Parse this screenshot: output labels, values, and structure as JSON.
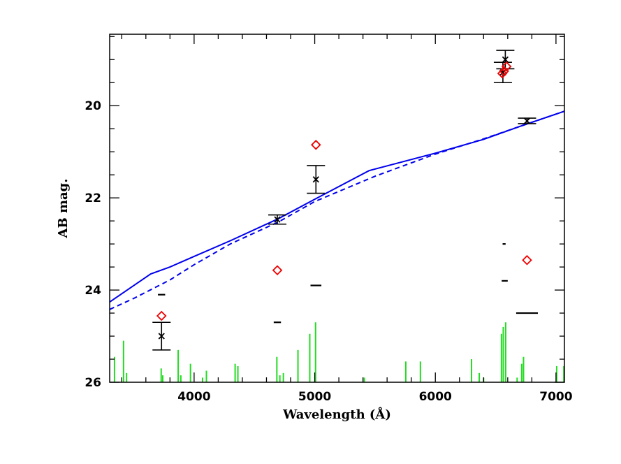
{
  "chart_data": {
    "type": "scatter",
    "title": "",
    "xlabel": "Wavelength (Å)",
    "ylabel": "AB mag.",
    "xlim": [
      3300,
      7070
    ],
    "ylim": [
      26,
      18.45
    ],
    "y_inverted": true,
    "x_ticks": [
      4000,
      5000,
      6000,
      7000
    ],
    "y_ticks": [
      20,
      22,
      24,
      26
    ],
    "grid": false,
    "legend": "none",
    "colors": {
      "model_solid": "#0000ee",
      "model_dashed": "#0000ee",
      "observed": "#000000",
      "synthetic": "#ee0000",
      "emission_lines": "#22dd22",
      "ticks_short": "#000000"
    },
    "series": [
      {
        "style": "solid-line",
        "x": [
          3300,
          3640,
          3800,
          4000,
          4300,
          4700,
          5000,
          5450,
          6000,
          6400,
          6700,
          7070
        ],
        "y": [
          24.26,
          23.65,
          23.5,
          23.27,
          22.93,
          22.45,
          22.03,
          21.41,
          21.03,
          20.73,
          20.45,
          20.12
        ]
      },
      {
        "style": "dashed-line",
        "x": [
          3300,
          3500,
          3800,
          4000,
          4300,
          4700,
          5000,
          5500,
          6000,
          6400,
          6700,
          7070
        ],
        "y": [
          24.42,
          24.18,
          23.78,
          23.45,
          23.0,
          22.52,
          22.08,
          21.53,
          21.05,
          20.72,
          20.45,
          20.12
        ]
      },
      {
        "style": "cross-with-errorbar",
        "points": [
          {
            "x": 3730,
            "y": 25.0,
            "err": 0.3
          },
          {
            "x": 4690,
            "y": 22.47,
            "err": 0.1
          },
          {
            "x": 5010,
            "y": 21.6,
            "err": 0.3
          },
          {
            "x": 6560,
            "y": 19.28,
            "err": 0.22
          },
          {
            "x": 6580,
            "y": 19.0,
            "err": 0.2
          },
          {
            "x": 6760,
            "y": 20.33,
            "err": 0.06
          }
        ]
      },
      {
        "style": "open-diamond",
        "points": [
          {
            "x": 3730,
            "y": 24.56
          },
          {
            "x": 4690,
            "y": 23.57
          },
          {
            "x": 5010,
            "y": 20.85
          },
          {
            "x": 6555,
            "y": 19.3
          },
          {
            "x": 6570,
            "y": 19.25
          },
          {
            "x": 6590,
            "y": 19.15
          },
          {
            "x": 6760,
            "y": 23.35
          }
        ]
      },
      {
        "style": "short-horizontal-dash",
        "points": [
          {
            "x": 3730,
            "y": 24.1,
            "w": 60
          },
          {
            "x": 4690,
            "y": 24.7,
            "w": 60
          },
          {
            "x": 5010,
            "y": 23.9,
            "w": 90
          },
          {
            "x": 6570,
            "y": 23.0,
            "w": 25
          },
          {
            "x": 6575,
            "y": 23.8,
            "w": 50
          },
          {
            "x": 6760,
            "y": 24.5,
            "w": 180
          }
        ]
      }
    ],
    "emission_lines": [
      {
        "x": 3340,
        "top": 25.45
      },
      {
        "x": 3415,
        "top": 25.1
      },
      {
        "x": 3440,
        "top": 25.8
      },
      {
        "x": 3727,
        "top": 25.7
      },
      {
        "x": 3740,
        "top": 25.85
      },
      {
        "x": 3868,
        "top": 25.3
      },
      {
        "x": 3890,
        "top": 25.85
      },
      {
        "x": 3970,
        "top": 25.6
      },
      {
        "x": 4070,
        "top": 25.9
      },
      {
        "x": 4102,
        "top": 25.75
      },
      {
        "x": 4340,
        "top": 25.6
      },
      {
        "x": 4363,
        "top": 25.65
      },
      {
        "x": 4686,
        "top": 25.45
      },
      {
        "x": 4711,
        "top": 25.85
      },
      {
        "x": 4740,
        "top": 25.8
      },
      {
        "x": 4861,
        "top": 25.3
      },
      {
        "x": 4959,
        "top": 24.95
      },
      {
        "x": 5007,
        "top": 24.7
      },
      {
        "x": 5411,
        "top": 25.9
      },
      {
        "x": 5755,
        "top": 25.55
      },
      {
        "x": 5876,
        "top": 25.55
      },
      {
        "x": 6300,
        "top": 25.5
      },
      {
        "x": 6364,
        "top": 25.8
      },
      {
        "x": 6400,
        "top": 25.9
      },
      {
        "x": 6548,
        "top": 24.95
      },
      {
        "x": 6563,
        "top": 24.8
      },
      {
        "x": 6583,
        "top": 24.7
      },
      {
        "x": 6678,
        "top": 25.9
      },
      {
        "x": 6716,
        "top": 25.6
      },
      {
        "x": 6731,
        "top": 25.45
      },
      {
        "x": 7006,
        "top": 25.65
      },
      {
        "x": 7065,
        "top": 25.65
      }
    ]
  }
}
